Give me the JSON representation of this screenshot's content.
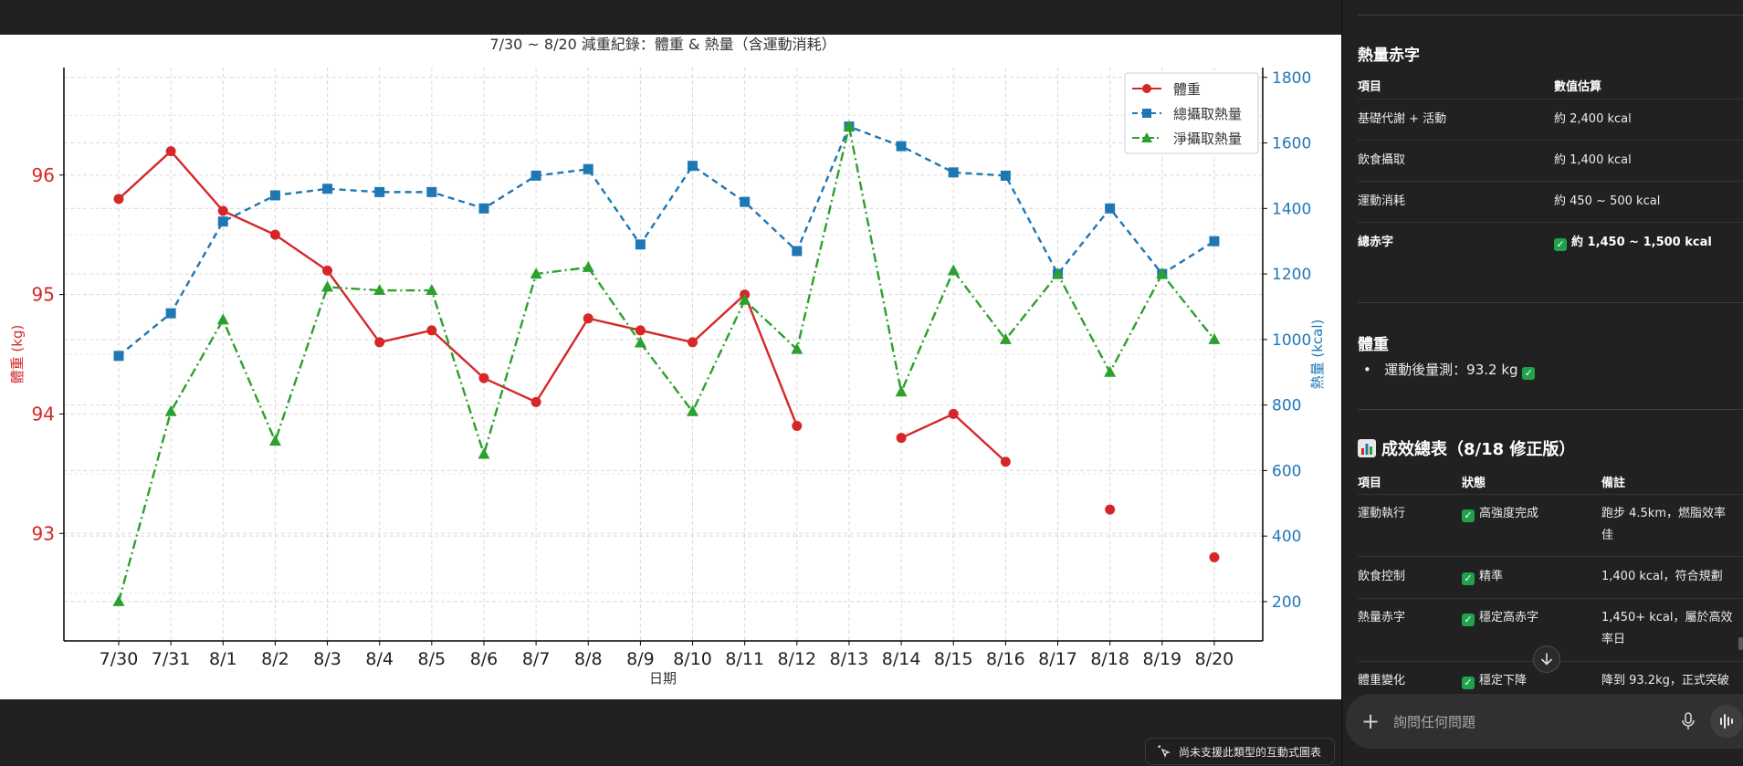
{
  "chart_note": "尚未支援此類型的互動式圖表",
  "composer": {
    "placeholder": "詢問任何問題"
  },
  "colors": {
    "weight": "#d62728",
    "total": "#1f77b4",
    "net": "#2ca02c"
  },
  "chart_data": {
    "type": "line",
    "title": "7/30 ~ 8/20 減重紀錄：體重 & 熱量（含運動消耗）",
    "xlabel": "日期",
    "ylabel_left": "體重 (kg)",
    "ylabel_right": "熱量 (kcal)",
    "categories": [
      "7/30",
      "7/31",
      "8/1",
      "8/2",
      "8/3",
      "8/4",
      "8/5",
      "8/6",
      "8/7",
      "8/8",
      "8/9",
      "8/10",
      "8/11",
      "8/12",
      "8/13",
      "8/14",
      "8/15",
      "8/16",
      "8/17",
      "8/18",
      "8/19",
      "8/20"
    ],
    "ylim_left": [
      92.1,
      96.9
    ],
    "yticks_left": [
      "93",
      "94",
      "95",
      "96"
    ],
    "ylim_right": [
      80,
      1830
    ],
    "yticks_right": [
      "200",
      "400",
      "600",
      "800",
      "1000",
      "1200",
      "1400",
      "1600",
      "1800"
    ],
    "grid": true,
    "legend_position": "top-right",
    "series": [
      {
        "name": "體重",
        "axis": "left",
        "style": "solid",
        "marker": "circle",
        "values": [
          95.8,
          96.2,
          95.7,
          95.5,
          95.2,
          94.6,
          94.7,
          94.3,
          94.1,
          94.8,
          94.7,
          94.6,
          95.0,
          93.9,
          null,
          93.8,
          94.0,
          93.6,
          null,
          93.2,
          null,
          92.8
        ]
      },
      {
        "name": "總攝取熱量",
        "axis": "right",
        "style": "dashed",
        "marker": "square",
        "values": [
          950,
          1080,
          1360,
          1440,
          1460,
          1450,
          1450,
          1400,
          1500,
          1520,
          1290,
          1530,
          1420,
          1270,
          1650,
          1590,
          1510,
          1500,
          1200,
          1400,
          1200,
          1300
        ]
      },
      {
        "name": "淨攝取熱量",
        "axis": "right",
        "style": "dashdot",
        "marker": "triangle",
        "values": [
          200,
          780,
          1060,
          690,
          1160,
          1150,
          1150,
          650,
          1200,
          1220,
          990,
          780,
          1120,
          970,
          1650,
          840,
          1210,
          1000,
          1200,
          900,
          1200,
          1000
        ]
      }
    ]
  },
  "side": {
    "deficit": {
      "title": "熱量赤字",
      "headers": [
        "項目",
        "數值估算"
      ],
      "rows": [
        {
          "item": "基礎代謝 + 活動",
          "value": "約 2,400 kcal"
        },
        {
          "item": "飲食攝取",
          "value": "約 1,400 kcal"
        },
        {
          "item": "運動消耗",
          "value": "約 450 ~ 500 kcal"
        },
        {
          "item": "總赤字",
          "value": "約 1,450 ~ 1,500 kcal"
        }
      ]
    },
    "weight": {
      "title": "體重",
      "bullet": "運動後量測：93.2 kg"
    },
    "summary": {
      "title": "成效總表（8/18 修正版）",
      "headers": [
        "項目",
        "狀態",
        "備註"
      ],
      "rows": [
        {
          "item": "運動執行",
          "status": "高強度完成",
          "note1": "跑步 4.5km，燃脂效率",
          "note2": "佳"
        },
        {
          "item": "飲食控制",
          "status": "精準",
          "note1": "1,400 kcal，符合規劃",
          "note2": ""
        },
        {
          "item": "熱量赤字",
          "status": "穩定高赤字",
          "note1": "1,450+ kcal，屬於高效",
          "note2": "率日"
        },
        {
          "item": "體重變化",
          "status": "穩定下降",
          "note1": "降到 93.2kg，正式突破",
          "note2": ""
        }
      ]
    }
  }
}
